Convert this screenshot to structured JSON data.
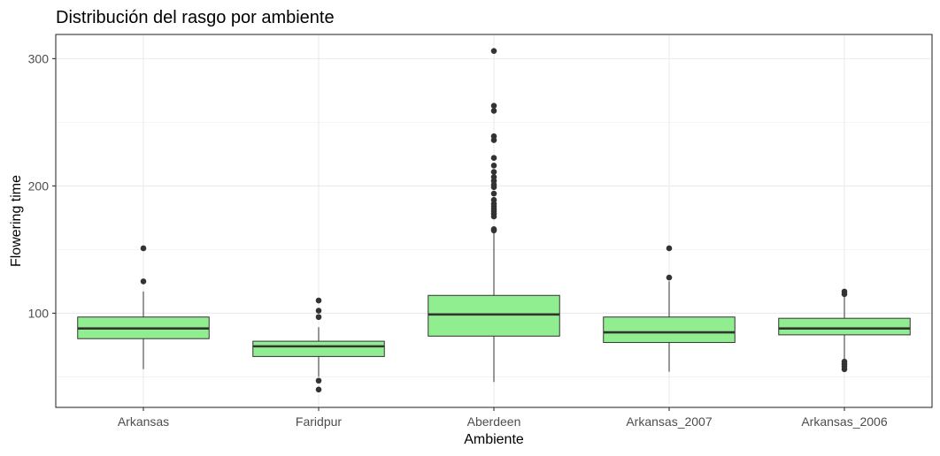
{
  "chart_data": {
    "type": "box",
    "title": "Distribución del rasgo por ambiente",
    "xlabel": "Ambiente",
    "ylabel": "Flowering time",
    "ylim": [
      26,
      319
    ],
    "y_ticks": [
      100,
      200,
      300
    ],
    "grid": true,
    "box_fill": "#90EE90",
    "line_color": "#333333",
    "categories": [
      "Arkansas",
      "Faridpur",
      "Aberdeen",
      "Arkansas_2007",
      "Arkansas_2006"
    ],
    "boxes": [
      {
        "name": "Arkansas",
        "min": 56,
        "q1": 80,
        "median": 88,
        "q3": 97,
        "max": 117,
        "outliers": [
          125,
          151
        ]
      },
      {
        "name": "Faridpur",
        "min": 50,
        "q1": 66,
        "median": 74,
        "q3": 78,
        "max": 89,
        "outliers": [
          40,
          47,
          97,
          102,
          110
        ]
      },
      {
        "name": "Aberdeen",
        "min": 46,
        "q1": 82,
        "median": 99,
        "q3": 114,
        "max": 163,
        "outliers": [
          165,
          166,
          176,
          178,
          180,
          182,
          184,
          186,
          189,
          194,
          199,
          201,
          204,
          207,
          211,
          216,
          222,
          236,
          239,
          259,
          263,
          306
        ]
      },
      {
        "name": "Arkansas_2007",
        "min": 54,
        "q1": 77,
        "median": 85,
        "q3": 97,
        "max": 125,
        "outliers": [
          128,
          151
        ]
      },
      {
        "name": "Arkansas_2006",
        "min": 64,
        "q1": 83,
        "median": 88,
        "q3": 96,
        "max": 114,
        "outliers": [
          56,
          58,
          60,
          62,
          115,
          117
        ]
      }
    ]
  }
}
